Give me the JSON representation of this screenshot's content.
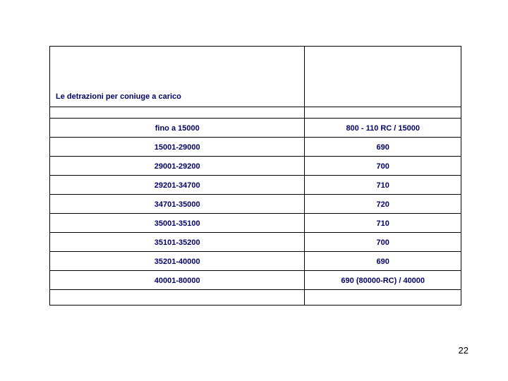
{
  "table": {
    "title": "Le detrazioni per coniuge a carico",
    "title_color": "#000066",
    "cell_text_color": "#000066",
    "border_color": "#000000",
    "background_color": "#ffffff",
    "font_size_pt": 11,
    "font_weight": "bold",
    "columns": [
      "range",
      "value"
    ],
    "column_widths_percent": [
      62,
      38
    ],
    "rows": [
      {
        "range": "fino a 15000",
        "value": "800 - 110 RC / 15000"
      },
      {
        "range": "15001-29000",
        "value": "690"
      },
      {
        "range": "29001-29200",
        "value": "700"
      },
      {
        "range": "29201-34700",
        "value": "710"
      },
      {
        "range": "34701-35000",
        "value": "720"
      },
      {
        "range": "35001-35100",
        "value": "710"
      },
      {
        "range": "35101-35200",
        "value": "700"
      },
      {
        "range": "35201-40000",
        "value": "690"
      },
      {
        "range": "40001-80000",
        "value": "690 (80000-RC) / 40000"
      }
    ]
  },
  "page_number": "22"
}
